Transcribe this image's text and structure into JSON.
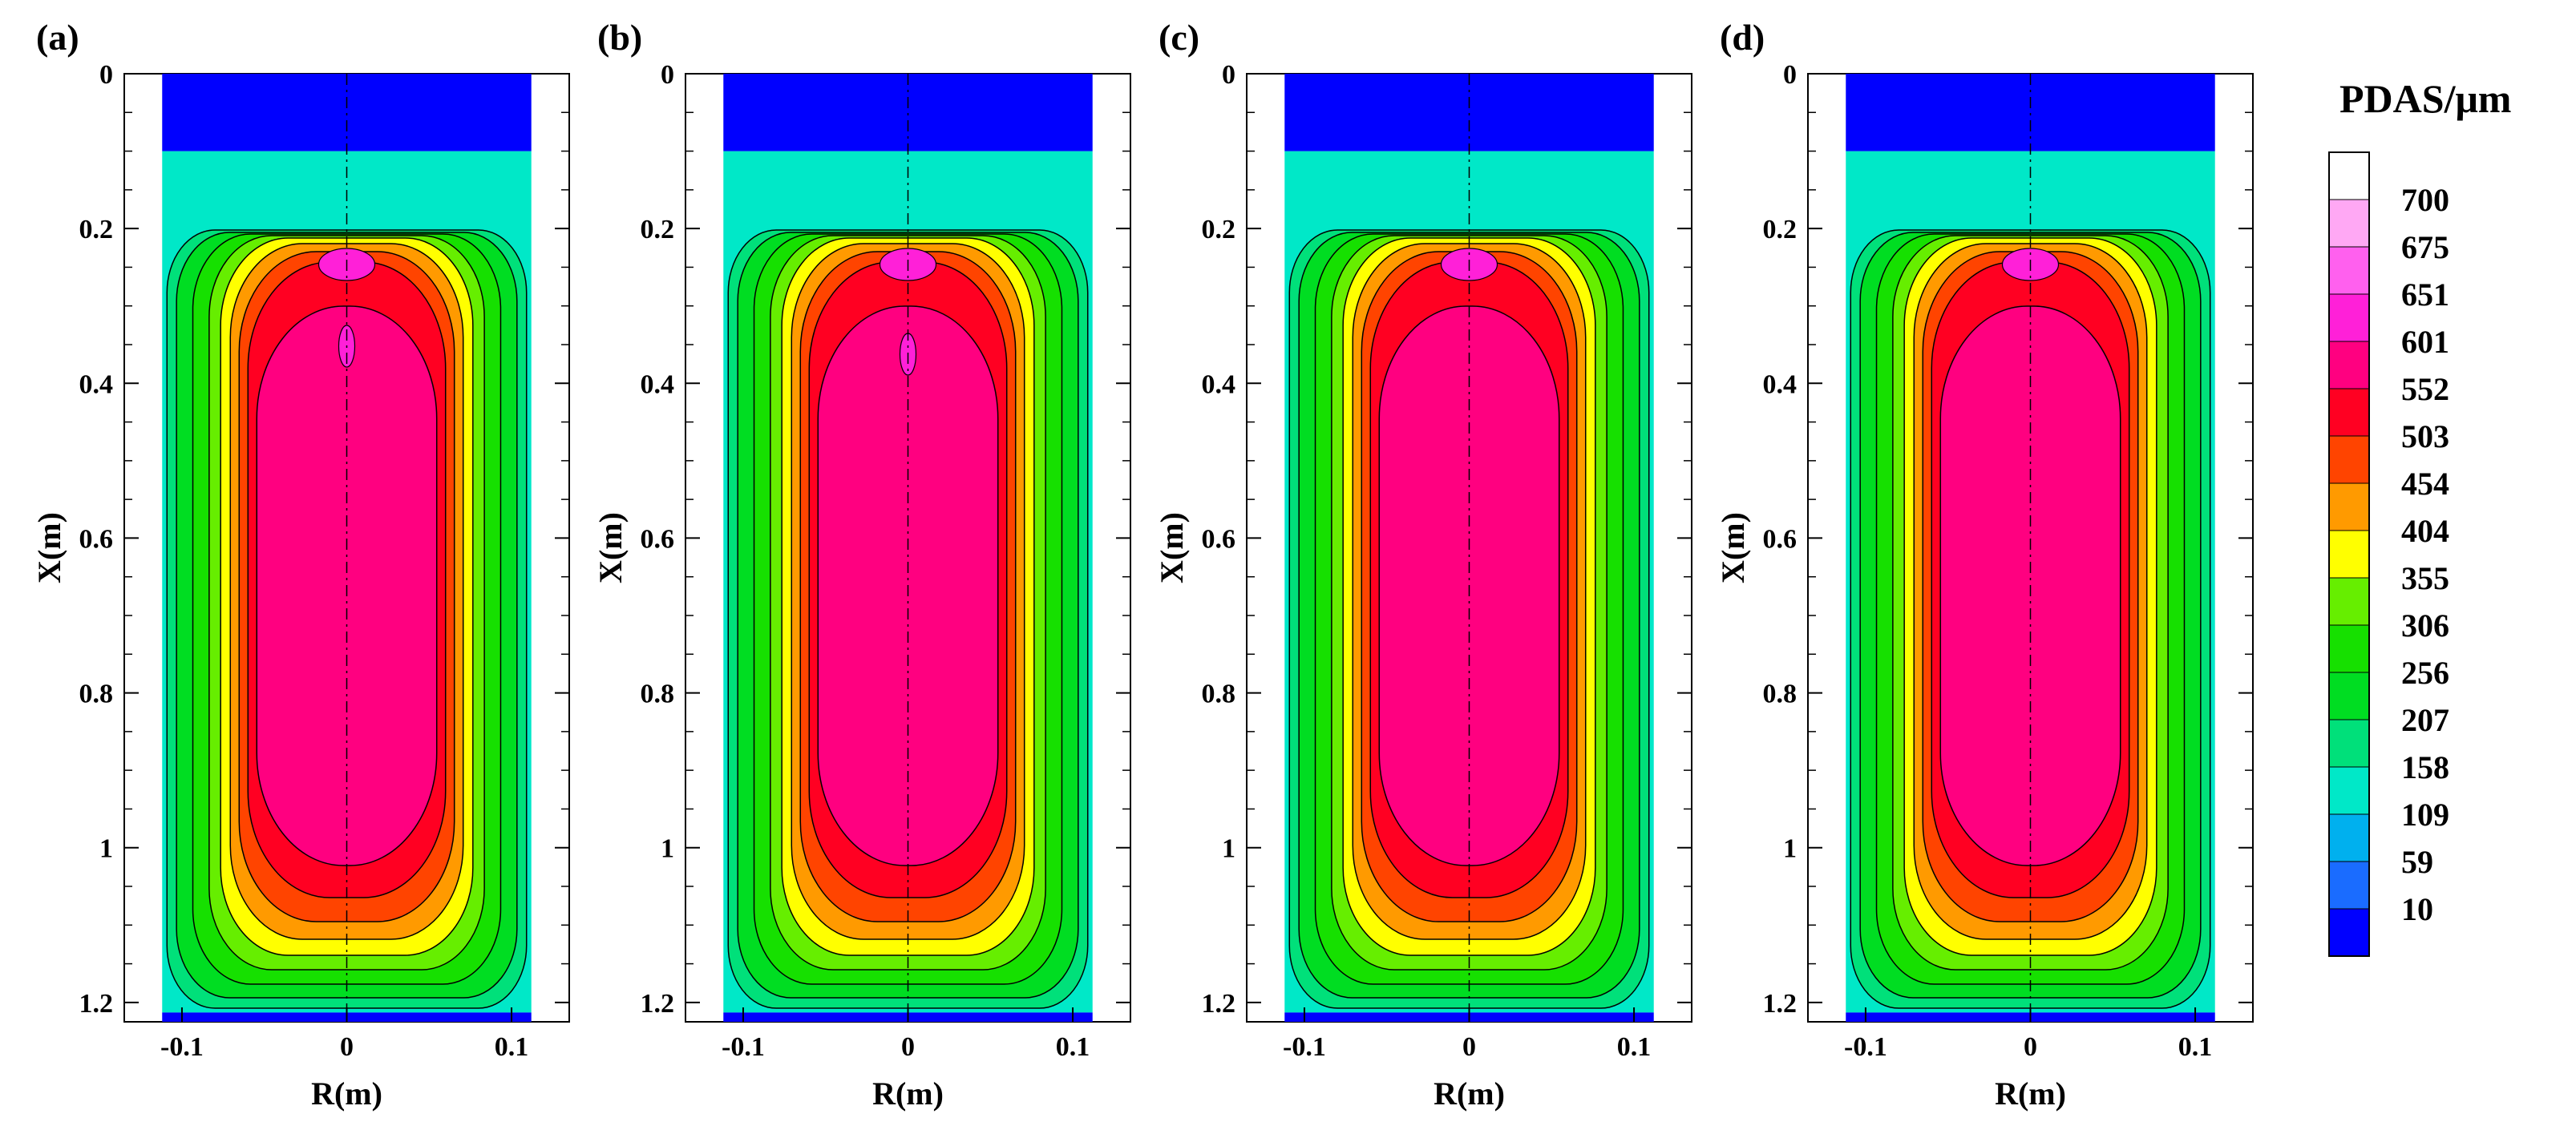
{
  "chart_data": {
    "type": "heatmap",
    "colorbar": {
      "title": "PDAS/μm",
      "levels": [
        10,
        59,
        109,
        158,
        207,
        256,
        306,
        355,
        404,
        454,
        503,
        552,
        601,
        651,
        675,
        700
      ],
      "colors": [
        "#0000ff",
        "#1a6cff",
        "#00b0ee",
        "#00e8c8",
        "#00e07a",
        "#00dd22",
        "#16e000",
        "#66ee00",
        "#ffff00",
        "#ff9a00",
        "#ff4400",
        "#ff0022",
        "#ff0080",
        "#ff20d8",
        "#ff60ee",
        "#ffa8f4",
        "#ffffff"
      ]
    },
    "panels": [
      {
        "label": "(a)",
        "xlabel": "R(m)",
        "ylabel": "X(m)",
        "xticks": [
          "-0.1",
          "0",
          "0.1"
        ],
        "yticks": [
          "0",
          "0.2",
          "0.4",
          "0.6",
          "0.8",
          "1",
          "1.2"
        ],
        "xlim": [
          -0.135,
          0.135
        ],
        "ylim": [
          0,
          1.225
        ]
      },
      {
        "label": "(b)",
        "xlabel": "R(m)",
        "ylabel": "X(m)",
        "xticks": [
          "-0.1",
          "0",
          "0.1"
        ],
        "yticks": [
          "0",
          "0.2",
          "0.4",
          "0.6",
          "0.8",
          "1",
          "1.2"
        ],
        "xlim": [
          -0.135,
          0.135
        ],
        "ylim": [
          0,
          1.225
        ]
      },
      {
        "label": "(c)",
        "xlabel": "R(m)",
        "ylabel": "X(m)",
        "xticks": [
          "-0.1",
          "0",
          "0.1"
        ],
        "yticks": [
          "0",
          "0.2",
          "0.4",
          "0.6",
          "0.8",
          "1",
          "1.2"
        ],
        "xlim": [
          -0.135,
          0.135
        ],
        "ylim": [
          0,
          1.225
        ]
      },
      {
        "label": "(d)",
        "xlabel": "R(m)",
        "ylabel": "X(m)",
        "xticks": [
          "-0.1",
          "0",
          "0.1"
        ],
        "yticks": [
          "0",
          "0.2",
          "0.4",
          "0.6",
          "0.8",
          "1",
          "1.2"
        ],
        "xlim": [
          -0.135,
          0.135
        ],
        "ylim": [
          0,
          1.225
        ]
      }
    ],
    "domain": {
      "r_half_width": 0.112,
      "top_block_x": [
        0,
        0.1
      ],
      "bottom_block_x": [
        1.213,
        1.225
      ]
    },
    "grid": false
  }
}
